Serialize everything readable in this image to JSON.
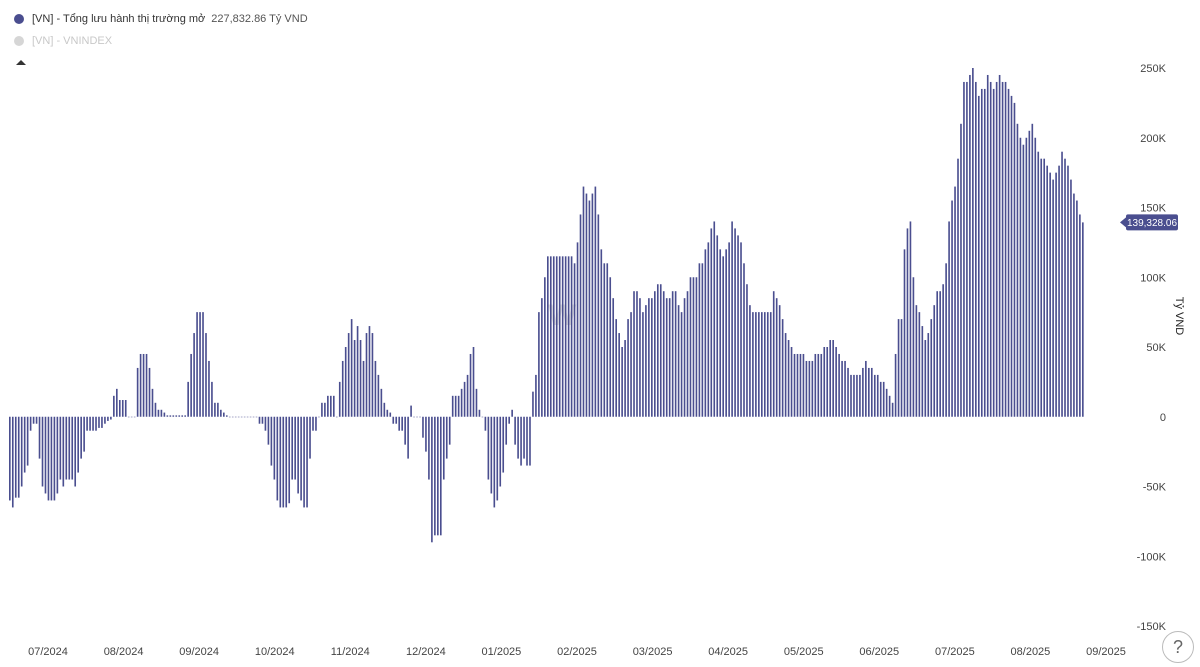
{
  "legend": {
    "series1_label": "[VN] - Tổng lưu hành thị trường mở",
    "series1_value": "227,832.86 Tỷ VND",
    "series2_label": "[VN] - VNINDEX"
  },
  "colors": {
    "bar": "#4a4e8f",
    "badge": "#4a4e8f",
    "muted": "#d6d6d6"
  },
  "chart_data": {
    "type": "bar",
    "ylabel": "Tỷ VND",
    "ylim": [
      -150000,
      250000
    ],
    "y_ticks": [
      "250K",
      "200K",
      "150K",
      "100K",
      "50K",
      "0",
      "-50K",
      "-100K",
      "-150K"
    ],
    "x_ticks": [
      "07/2024",
      "08/2024",
      "09/2024",
      "10/2024",
      "11/2024",
      "12/2024",
      "01/2025",
      "02/2025",
      "03/2025",
      "04/2025",
      "05/2025",
      "06/2025",
      "07/2025",
      "08/2025",
      "09/2025"
    ],
    "last_value_label": "139,328.06",
    "series": [
      {
        "name": "[VN] - Tổng lưu hành thị trường mở",
        "values": [
          -60000,
          -65000,
          -58000,
          -58000,
          -50000,
          -40000,
          -35000,
          -10000,
          -5000,
          -5000,
          -30000,
          -50000,
          -55000,
          -60000,
          -60000,
          -60000,
          -55000,
          -45000,
          -50000,
          -45000,
          -45000,
          -45000,
          -50000,
          -40000,
          -30000,
          -25000,
          -10000,
          -10000,
          -10000,
          -10000,
          -8000,
          -8000,
          -5000,
          -3000,
          -2000,
          15000,
          20000,
          12000,
          12000,
          12000,
          0,
          0,
          0,
          35000,
          45000,
          45000,
          45000,
          35000,
          20000,
          10000,
          5000,
          5000,
          3000,
          1000,
          1000,
          1000,
          1000,
          1000,
          1000,
          1000,
          25000,
          45000,
          60000,
          75000,
          75000,
          75000,
          60000,
          40000,
          25000,
          10000,
          10000,
          5000,
          3000,
          1000,
          0,
          0,
          0,
          0,
          0,
          0,
          0,
          0,
          0,
          0,
          -5000,
          -5000,
          -10000,
          -20000,
          -35000,
          -45000,
          -60000,
          -65000,
          -65000,
          -65000,
          -62000,
          -45000,
          -45000,
          -55000,
          -60000,
          -65000,
          -65000,
          -30000,
          -10000,
          -10000,
          0,
          10000,
          10000,
          15000,
          15000,
          15000,
          0,
          25000,
          40000,
          50000,
          60000,
          70000,
          55000,
          65000,
          55000,
          40000,
          60000,
          65000,
          60000,
          40000,
          30000,
          20000,
          10000,
          5000,
          3000,
          -5000,
          -5000,
          -10000,
          -10000,
          -20000,
          -30000,
          8000,
          0,
          0,
          0,
          -15000,
          -25000,
          -45000,
          -90000,
          -85000,
          -85000,
          -85000,
          -45000,
          -30000,
          -20000,
          15000,
          15000,
          15000,
          20000,
          25000,
          30000,
          45000,
          50000,
          20000,
          5000,
          0,
          -10000,
          -45000,
          -55000,
          -65000,
          -60000,
          -50000,
          -40000,
          -20000,
          -5000,
          5000,
          -20000,
          -30000,
          -35000,
          -30000,
          -35000,
          -35000,
          18000,
          30000,
          75000,
          85000,
          100000,
          115000,
          115000,
          115000,
          115000,
          115000,
          115000,
          115000,
          115000,
          115000,
          110000,
          125000,
          145000,
          165000,
          160000,
          155000,
          160000,
          165000,
          145000,
          120000,
          110000,
          110000,
          100000,
          85000,
          70000,
          60000,
          50000,
          55000,
          70000,
          75000,
          90000,
          90000,
          85000,
          75000,
          80000,
          85000,
          85000,
          90000,
          95000,
          95000,
          90000,
          85000,
          85000,
          90000,
          90000,
          80000,
          75000,
          85000,
          90000,
          100000,
          100000,
          100000,
          110000,
          110000,
          120000,
          125000,
          135000,
          140000,
          130000,
          120000,
          115000,
          120000,
          125000,
          140000,
          135000,
          130000,
          125000,
          110000,
          95000,
          80000,
          75000,
          75000,
          75000,
          75000,
          75000,
          75000,
          75000,
          90000,
          85000,
          80000,
          70000,
          60000,
          55000,
          50000,
          45000,
          45000,
          45000,
          45000,
          40000,
          40000,
          40000,
          45000,
          45000,
          45000,
          50000,
          50000,
          55000,
          55000,
          50000,
          45000,
          40000,
          40000,
          35000,
          30000,
          30000,
          30000,
          30000,
          35000,
          40000,
          35000,
          35000,
          30000,
          30000,
          25000,
          25000,
          20000,
          15000,
          10000,
          45000,
          70000,
          70000,
          120000,
          135000,
          140000,
          100000,
          80000,
          75000,
          65000,
          55000,
          60000,
          70000,
          80000,
          90000,
          90000,
          95000,
          110000,
          140000,
          155000,
          165000,
          185000,
          210000,
          240000,
          240000,
          245000,
          250000,
          240000,
          230000,
          235000,
          235000,
          245000,
          240000,
          235000,
          240000,
          245000,
          240000,
          240000,
          235000,
          230000,
          225000,
          210000,
          200000,
          195000,
          200000,
          205000,
          210000,
          200000,
          190000,
          185000,
          185000,
          180000,
          175000,
          170000,
          175000,
          180000,
          190000,
          185000,
          180000,
          170000,
          160000,
          155000,
          145000,
          139328
        ]
      }
    ]
  },
  "help_label": "?"
}
